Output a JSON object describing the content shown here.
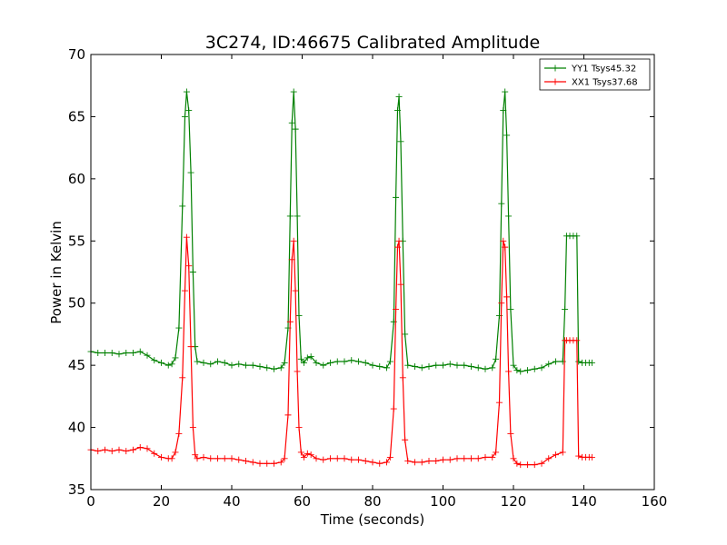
{
  "chart_data": {
    "type": "line",
    "title": "3C274, ID:46675 Calibrated Amplitude",
    "xlabel": "Time (seconds)",
    "ylabel": "Power in Kelvin",
    "xlim": [
      0,
      160
    ],
    "ylim": [
      35,
      70
    ],
    "xticks": [
      0,
      20,
      40,
      60,
      80,
      100,
      120,
      140,
      160
    ],
    "yticks": [
      35,
      40,
      45,
      50,
      55,
      60,
      65,
      70
    ],
    "grid": false,
    "legend_position": "top-right",
    "marker": "plus",
    "series": [
      {
        "name": "YY1 Tsys45.32",
        "color": "#008000",
        "points": [
          [
            0,
            46.1
          ],
          [
            2,
            46.0
          ],
          [
            4,
            46.0
          ],
          [
            6,
            46.0
          ],
          [
            8,
            45.9
          ],
          [
            10,
            46.0
          ],
          [
            12,
            46.0
          ],
          [
            14,
            46.1
          ],
          [
            16,
            45.8
          ],
          [
            18,
            45.4
          ],
          [
            20,
            45.2
          ],
          [
            22,
            45.0
          ],
          [
            23,
            45.1
          ],
          [
            24,
            45.6
          ],
          [
            25,
            48.0
          ],
          [
            26,
            57.8
          ],
          [
            26.7,
            65.0
          ],
          [
            27.2,
            67.0
          ],
          [
            27.8,
            65.5
          ],
          [
            28.4,
            60.5
          ],
          [
            29,
            52.5
          ],
          [
            29.6,
            46.5
          ],
          [
            30.2,
            45.3
          ],
          [
            32,
            45.2
          ],
          [
            34,
            45.1
          ],
          [
            36,
            45.3
          ],
          [
            38,
            45.2
          ],
          [
            40,
            45.0
          ],
          [
            42,
            45.1
          ],
          [
            44,
            45.0
          ],
          [
            46,
            45.0
          ],
          [
            48,
            44.9
          ],
          [
            50,
            44.8
          ],
          [
            52,
            44.7
          ],
          [
            54,
            44.8
          ],
          [
            55,
            45.2
          ],
          [
            56,
            48.0
          ],
          [
            56.6,
            57.0
          ],
          [
            57.1,
            64.5
          ],
          [
            57.6,
            67.0
          ],
          [
            58.1,
            64.0
          ],
          [
            58.6,
            57.0
          ],
          [
            59.1,
            49.0
          ],
          [
            59.7,
            45.5
          ],
          [
            60.5,
            45.2
          ],
          [
            61.5,
            45.6
          ],
          [
            62.5,
            45.7
          ],
          [
            64,
            45.2
          ],
          [
            66,
            45.0
          ],
          [
            68,
            45.2
          ],
          [
            70,
            45.3
          ],
          [
            72,
            45.3
          ],
          [
            74,
            45.4
          ],
          [
            76,
            45.3
          ],
          [
            78,
            45.2
          ],
          [
            80,
            45.0
          ],
          [
            82,
            44.9
          ],
          [
            84,
            44.8
          ],
          [
            85,
            45.3
          ],
          [
            86,
            48.5
          ],
          [
            86.6,
            58.5
          ],
          [
            87.1,
            65.5
          ],
          [
            87.5,
            66.6
          ],
          [
            88,
            63.0
          ],
          [
            88.6,
            55.0
          ],
          [
            89.2,
            47.5
          ],
          [
            90,
            45.0
          ],
          [
            92,
            44.9
          ],
          [
            94,
            44.8
          ],
          [
            96,
            44.9
          ],
          [
            98,
            45.0
          ],
          [
            100,
            45.0
          ],
          [
            102,
            45.1
          ],
          [
            104,
            45.0
          ],
          [
            106,
            45.0
          ],
          [
            108,
            44.9
          ],
          [
            110,
            44.8
          ],
          [
            112,
            44.7
          ],
          [
            114,
            44.8
          ],
          [
            115,
            45.5
          ],
          [
            116,
            49.0
          ],
          [
            116.6,
            58.0
          ],
          [
            117.1,
            65.5
          ],
          [
            117.6,
            67.0
          ],
          [
            118.1,
            63.5
          ],
          [
            118.6,
            57.0
          ],
          [
            119.2,
            49.5
          ],
          [
            120,
            45.0
          ],
          [
            121,
            44.6
          ],
          [
            122,
            44.5
          ],
          [
            124,
            44.6
          ],
          [
            126,
            44.7
          ],
          [
            128,
            44.8
          ],
          [
            130,
            45.1
          ],
          [
            132,
            45.3
          ],
          [
            134,
            45.3
          ],
          [
            134.6,
            49.5
          ],
          [
            135.1,
            55.4
          ],
          [
            136,
            55.4
          ],
          [
            137,
            55.4
          ],
          [
            138,
            55.4
          ],
          [
            138.5,
            45.3
          ],
          [
            139.5,
            45.2
          ],
          [
            140.5,
            45.2
          ],
          [
            141.5,
            45.2
          ],
          [
            142.3,
            45.2
          ]
        ]
      },
      {
        "name": "XX1 Tsys37.68",
        "color": "#ff0000",
        "points": [
          [
            0,
            38.2
          ],
          [
            2,
            38.1
          ],
          [
            4,
            38.2
          ],
          [
            6,
            38.1
          ],
          [
            8,
            38.2
          ],
          [
            10,
            38.1
          ],
          [
            12,
            38.2
          ],
          [
            14,
            38.4
          ],
          [
            16,
            38.3
          ],
          [
            18,
            37.9
          ],
          [
            20,
            37.6
          ],
          [
            22,
            37.5
          ],
          [
            23,
            37.5
          ],
          [
            24,
            38.0
          ],
          [
            25,
            39.5
          ],
          [
            26,
            44.0
          ],
          [
            26.7,
            51.0
          ],
          [
            27.2,
            55.3
          ],
          [
            27.8,
            53.0
          ],
          [
            28.4,
            46.5
          ],
          [
            29,
            40.0
          ],
          [
            29.6,
            37.8
          ],
          [
            30.2,
            37.5
          ],
          [
            32,
            37.6
          ],
          [
            34,
            37.5
          ],
          [
            36,
            37.5
          ],
          [
            38,
            37.5
          ],
          [
            40,
            37.5
          ],
          [
            42,
            37.4
          ],
          [
            44,
            37.3
          ],
          [
            46,
            37.2
          ],
          [
            48,
            37.1
          ],
          [
            50,
            37.1
          ],
          [
            52,
            37.1
          ],
          [
            54,
            37.2
          ],
          [
            55,
            37.5
          ],
          [
            56,
            41.0
          ],
          [
            56.6,
            48.5
          ],
          [
            57.1,
            53.5
          ],
          [
            57.6,
            55.0
          ],
          [
            58.1,
            51.0
          ],
          [
            58.6,
            44.5
          ],
          [
            59.1,
            40.0
          ],
          [
            59.7,
            38.0
          ],
          [
            60.5,
            37.6
          ],
          [
            61.5,
            37.9
          ],
          [
            62.5,
            37.8
          ],
          [
            64,
            37.5
          ],
          [
            66,
            37.4
          ],
          [
            68,
            37.5
          ],
          [
            70,
            37.5
          ],
          [
            72,
            37.5
          ],
          [
            74,
            37.4
          ],
          [
            76,
            37.4
          ],
          [
            78,
            37.3
          ],
          [
            80,
            37.2
          ],
          [
            82,
            37.1
          ],
          [
            84,
            37.2
          ],
          [
            85,
            37.6
          ],
          [
            86,
            41.5
          ],
          [
            86.6,
            49.5
          ],
          [
            87.1,
            54.5
          ],
          [
            87.5,
            55.0
          ],
          [
            88,
            51.5
          ],
          [
            88.6,
            44.0
          ],
          [
            89.2,
            39.0
          ],
          [
            90,
            37.3
          ],
          [
            92,
            37.2
          ],
          [
            94,
            37.2
          ],
          [
            96,
            37.3
          ],
          [
            98,
            37.3
          ],
          [
            100,
            37.4
          ],
          [
            102,
            37.4
          ],
          [
            104,
            37.5
          ],
          [
            106,
            37.5
          ],
          [
            108,
            37.5
          ],
          [
            110,
            37.5
          ],
          [
            112,
            37.6
          ],
          [
            114,
            37.6
          ],
          [
            115,
            38.0
          ],
          [
            116,
            42.0
          ],
          [
            116.6,
            50.0
          ],
          [
            117.1,
            55.0
          ],
          [
            117.6,
            54.5
          ],
          [
            118.1,
            50.5
          ],
          [
            118.6,
            44.5
          ],
          [
            119.2,
            39.5
          ],
          [
            120,
            37.5
          ],
          [
            121,
            37.1
          ],
          [
            122,
            37.0
          ],
          [
            124,
            37.0
          ],
          [
            126,
            37.0
          ],
          [
            128,
            37.1
          ],
          [
            130,
            37.5
          ],
          [
            132,
            37.8
          ],
          [
            134,
            38.0
          ],
          [
            134.6,
            47.0
          ],
          [
            135.1,
            47.0
          ],
          [
            136,
            47.0
          ],
          [
            137,
            47.0
          ],
          [
            138,
            47.0
          ],
          [
            138.5,
            37.7
          ],
          [
            139.5,
            37.6
          ],
          [
            140.5,
            37.6
          ],
          [
            141.5,
            37.6
          ],
          [
            142.3,
            37.6
          ]
        ]
      }
    ]
  }
}
